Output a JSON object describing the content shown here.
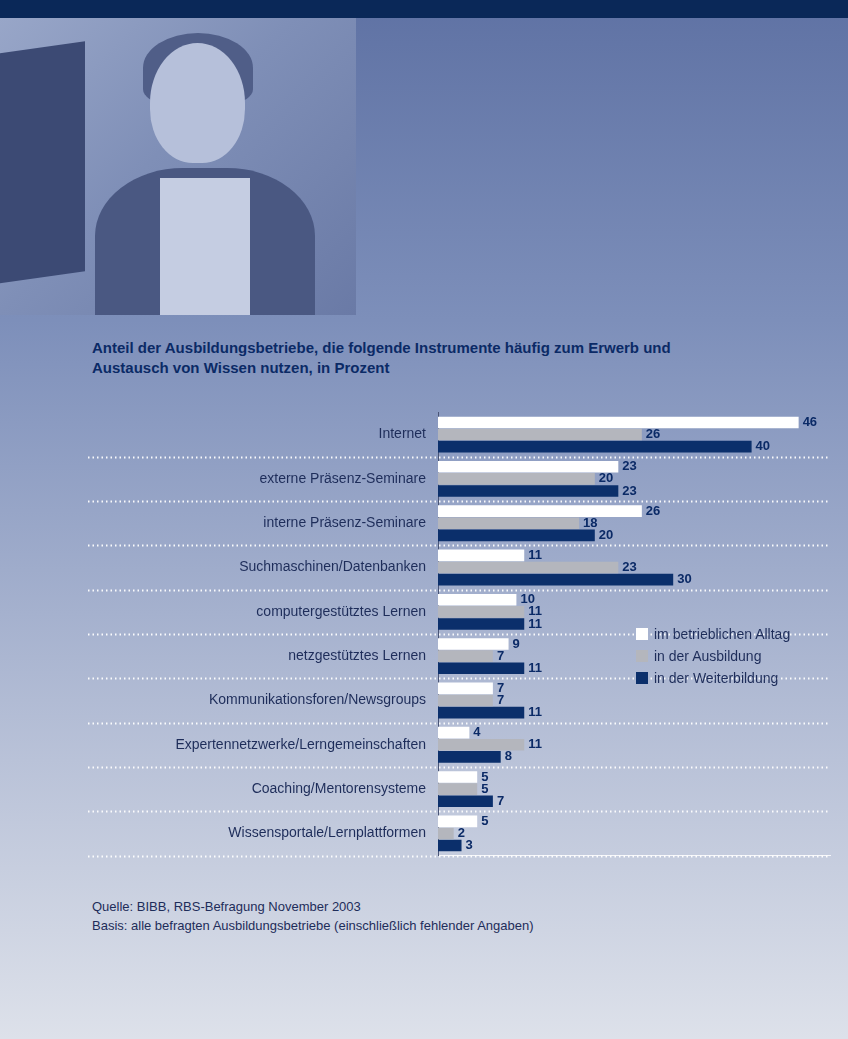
{
  "chart_data": {
    "type": "bar",
    "title": "Anteil der Ausbildungsbetriebe, die folgende Instrumente häufig zum Erwerb und Austausch von Wissen nutzen, in Prozent",
    "orientation": "horizontal",
    "categories": [
      "Internet",
      "externe Präsenz-Seminare",
      "interne Präsenz-Seminare",
      "Suchmaschinen/Datenbanken",
      "computergestütztes Lernen",
      "netzgestütztes Lernen",
      "Kommunikationsforen/Newsgroups",
      "Expertennetzwerke/Lerngemeinschaften",
      "Coaching/Mentorensysteme",
      "Wissensportale/Lernplattformen"
    ],
    "series": [
      {
        "name": "im betrieblichen Alltag",
        "color": "#ffffff",
        "values": [
          46,
          23,
          26,
          11,
          10,
          9,
          7,
          4,
          5,
          5
        ]
      },
      {
        "name": "in der Ausbildung",
        "color": "#b4b6bd",
        "values": [
          26,
          20,
          18,
          23,
          11,
          7,
          7,
          11,
          5,
          2
        ]
      },
      {
        "name": "in der Weiterbildung",
        "color": "#0b2f6b",
        "values": [
          40,
          23,
          20,
          30,
          11,
          11,
          11,
          8,
          7,
          3
        ]
      }
    ],
    "xlim": [
      0,
      50
    ],
    "grid": false,
    "data_labels": true,
    "tick_labels": "y",
    "legend": "right",
    "notes": [
      "Quelle: BIBB, RBS-Befragung November 2003",
      "Basis: alle befragten Ausbildungsbetriebe (einschließlich fehlender Angaben)"
    ]
  }
}
